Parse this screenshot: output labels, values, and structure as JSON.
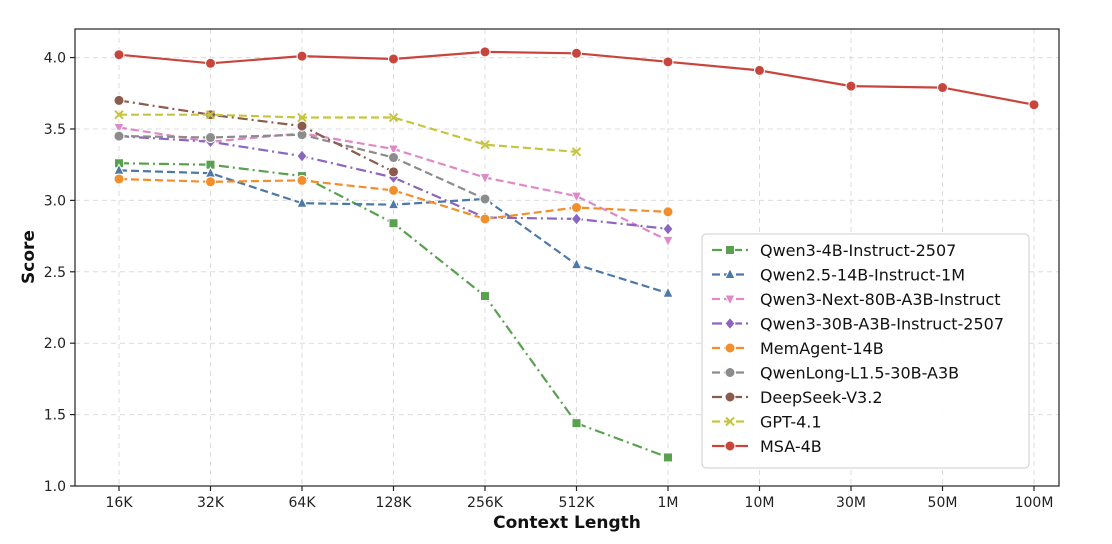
{
  "chart_data": {
    "type": "line",
    "title": "",
    "xlabel": "Context Length",
    "ylabel": "Score",
    "ylim": [
      1.0,
      4.2
    ],
    "yticks": [
      "1.0",
      "1.5",
      "2.0",
      "2.5",
      "3.0",
      "3.5",
      "4.0"
    ],
    "categories": [
      "16K",
      "32K",
      "64K",
      "128K",
      "256K",
      "512K",
      "1M",
      "10M",
      "30M",
      "50M",
      "100M"
    ],
    "grid": true,
    "legend_position": "lower-right",
    "series": [
      {
        "name": "Qwen3-4B-Instruct-2507",
        "color": "#59a14f",
        "dash": "dashdot",
        "marker": "square",
        "values": [
          3.26,
          3.25,
          3.17,
          2.84,
          2.33,
          1.44,
          1.2,
          null,
          null,
          null,
          null
        ]
      },
      {
        "name": "Qwen2.5-14B-Instruct-1M",
        "color": "#4e79a7",
        "dash": "dashed",
        "marker": "triangle-up",
        "values": [
          3.21,
          3.19,
          2.98,
          2.97,
          3.01,
          2.55,
          2.35,
          null,
          null,
          null,
          null
        ]
      },
      {
        "name": "Qwen3-Next-80B-A3B-Instruct",
        "color": "#e089c8",
        "dash": "dashed",
        "marker": "triangle-down",
        "values": [
          3.51,
          3.41,
          3.47,
          3.36,
          3.16,
          3.03,
          2.72,
          null,
          null,
          null,
          null
        ]
      },
      {
        "name": "Qwen3-30B-A3B-Instruct-2507",
        "color": "#8a66be",
        "dash": "dashdot",
        "marker": "diamond",
        "values": [
          3.45,
          3.41,
          3.31,
          3.16,
          2.88,
          2.87,
          2.8,
          null,
          null,
          null,
          null
        ]
      },
      {
        "name": "MemAgent-14B",
        "color": "#f28e2b",
        "dash": "dashed",
        "marker": "circle",
        "values": [
          3.15,
          3.13,
          3.14,
          3.07,
          2.87,
          2.95,
          2.92,
          null,
          null,
          null,
          null
        ]
      },
      {
        "name": "QwenLong-L1.5-30B-A3B",
        "color": "#8c8c8c",
        "dash": "dashed",
        "marker": "circle",
        "values": [
          3.45,
          3.44,
          3.46,
          3.3,
          3.01,
          null,
          null,
          null,
          null,
          null,
          null
        ]
      },
      {
        "name": "DeepSeek-V3.2",
        "color": "#8c5b4e",
        "dash": "dashdot",
        "marker": "circle",
        "values": [
          3.7,
          3.6,
          3.52,
          3.2,
          null,
          null,
          null,
          null,
          null,
          null,
          null
        ]
      },
      {
        "name": "GPT-4.1",
        "color": "#c5c541",
        "dash": "dashed",
        "marker": "x",
        "values": [
          3.6,
          3.6,
          3.58,
          3.58,
          3.39,
          3.34,
          null,
          null,
          null,
          null,
          null
        ]
      },
      {
        "name": "MSA-4B",
        "color": "#c8453d",
        "dash": "solid",
        "marker": "circle",
        "values": [
          4.02,
          3.96,
          4.01,
          3.99,
          4.04,
          4.03,
          3.97,
          3.91,
          3.8,
          3.79,
          3.67
        ]
      }
    ]
  }
}
